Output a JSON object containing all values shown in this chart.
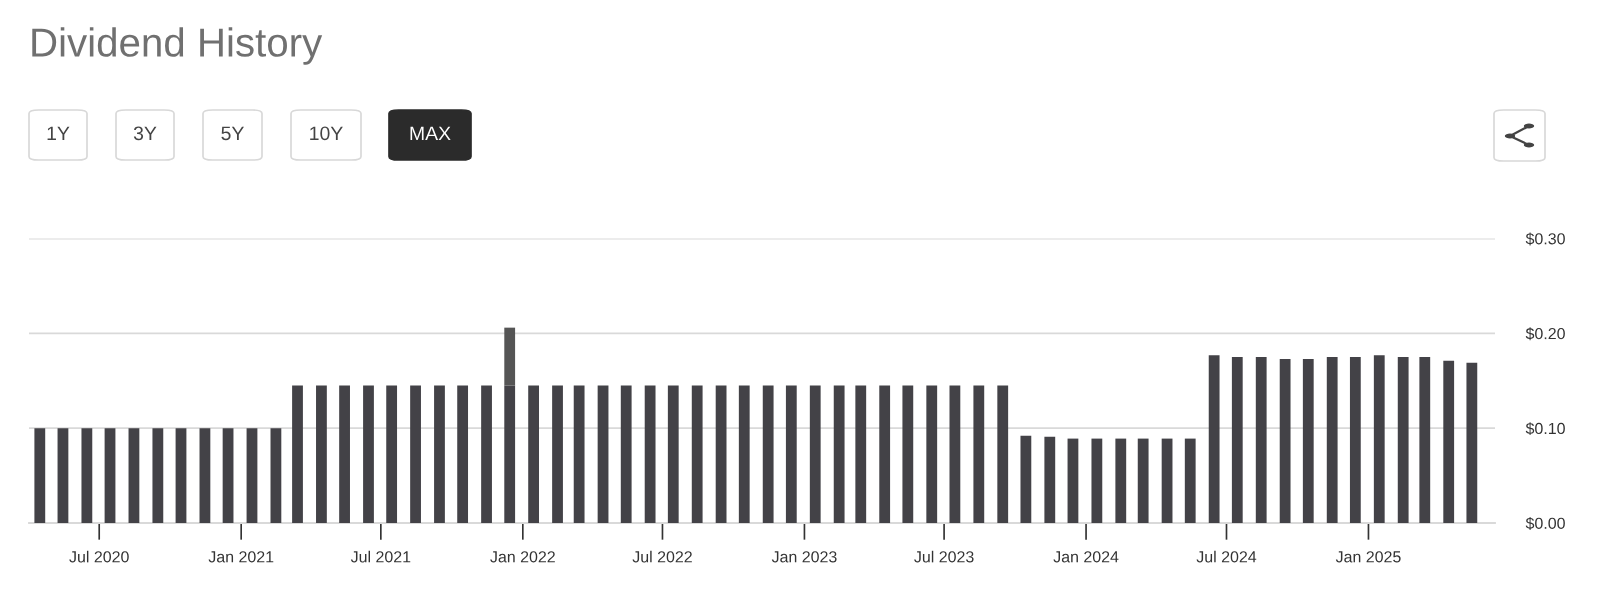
{
  "chart_data": {
    "type": "bar",
    "title": "Dividend History",
    "annotations": [
      "1Y",
      "3Y",
      "5Y",
      "10Y",
      "MAX"
    ],
    "x": [
      "2020-04-15",
      "2020-05-15",
      "2020-06-15",
      "2020-07-15",
      "2020-08-15",
      "2020-09-15",
      "2020-10-15",
      "2020-11-15",
      "2020-12-15",
      "2021-01-15",
      "2021-02-15",
      "2021-03-15",
      "2021-04-15",
      "2021-05-15",
      "2021-06-15",
      "2021-07-15",
      "2021-08-15",
      "2021-09-15",
      "2021-10-15",
      "2021-11-15",
      "2021-12-15",
      "2022-01-15",
      "2022-02-15",
      "2022-03-15",
      "2022-04-15",
      "2022-05-15",
      "2022-06-15",
      "2022-07-15",
      "2022-08-15",
      "2022-09-15",
      "2022-10-15",
      "2022-11-15",
      "2022-12-15",
      "2023-01-15",
      "2023-02-15",
      "2023-03-15",
      "2023-04-15",
      "2023-05-15",
      "2023-06-15",
      "2023-07-15",
      "2023-08-15",
      "2023-09-15",
      "2023-10-15",
      "2023-11-15",
      "2023-12-15",
      "2024-01-15",
      "2024-02-15",
      "2024-03-15",
      "2024-04-15",
      "2024-05-15",
      "2024-06-15",
      "2024-07-15",
      "2024-08-15",
      "2024-09-15",
      "2024-10-15",
      "2024-11-15",
      "2024-12-15",
      "2025-01-15",
      "2025-02-15",
      "2025-03-15",
      "2025-04-15",
      "2025-05-15"
    ],
    "stacked": true,
    "series": [
      {
        "color": "#434247",
        "values": [
          0.1,
          0.1,
          0.1,
          0.1,
          0.1,
          0.1,
          0.1,
          0.1,
          0.1,
          0.1,
          0.1,
          0.145,
          0.145,
          0.145,
          0.145,
          0.145,
          0.145,
          0.145,
          0.145,
          0.145,
          0.145,
          0.145,
          0.145,
          0.145,
          0.145,
          0.145,
          0.145,
          0.145,
          0.145,
          0.145,
          0.145,
          0.145,
          0.145,
          0.145,
          0.145,
          0.145,
          0.145,
          0.145,
          0.145,
          0.145,
          0.145,
          0.145,
          0.092,
          0.091,
          0.089,
          0.089,
          0.089,
          0.089,
          0.089,
          0.089,
          0.177,
          0.175,
          0.175,
          0.173,
          0.173,
          0.175,
          0.175,
          0.177,
          0.175,
          0.175,
          0.171,
          0.169
        ]
      },
      {
        "color": "#555555",
        "values": [
          null,
          null,
          null,
          null,
          null,
          null,
          null,
          null,
          null,
          null,
          null,
          null,
          null,
          null,
          null,
          null,
          null,
          null,
          null,
          null,
          0.061,
          null,
          null,
          null,
          null,
          null,
          null,
          null,
          null,
          null,
          null,
          null,
          null,
          null,
          null,
          null,
          null,
          null,
          null,
          null,
          null,
          null,
          null,
          null,
          null,
          null,
          null,
          null,
          null,
          null,
          null,
          null,
          null,
          null,
          null,
          null,
          null,
          null,
          null,
          null,
          null,
          null
        ]
      }
    ],
    "xlim": [
      "2020-04-01",
      "2025-06-14"
    ],
    "xticks": [
      {
        "value": "2020-07-01",
        "label": "Jul 2020"
      },
      {
        "value": "2021-01-01",
        "label": "Jan 2021"
      },
      {
        "value": "2021-07-01",
        "label": "Jul 2021"
      },
      {
        "value": "2022-01-01",
        "label": "Jan 2022"
      },
      {
        "value": "2022-07-01",
        "label": "Jul 2022"
      },
      {
        "value": "2023-01-01",
        "label": "Jan 2023"
      },
      {
        "value": "2023-07-01",
        "label": "Jul 2023"
      },
      {
        "value": "2024-01-01",
        "label": "Jan 2024"
      },
      {
        "value": "2024-07-01",
        "label": "Jul 2024"
      },
      {
        "value": "2025-01-01",
        "label": "Jan 2025"
      }
    ],
    "ylim": [
      0,
      0.3
    ],
    "yticks": [
      {
        "value": 0,
        "label": "$0.00"
      },
      {
        "value": 0.1,
        "label": "$0.10"
      },
      {
        "value": 0.2,
        "label": "$0.20"
      },
      {
        "value": 0.3,
        "label": "$0.30"
      }
    ],
    "grid": "y"
  }
}
